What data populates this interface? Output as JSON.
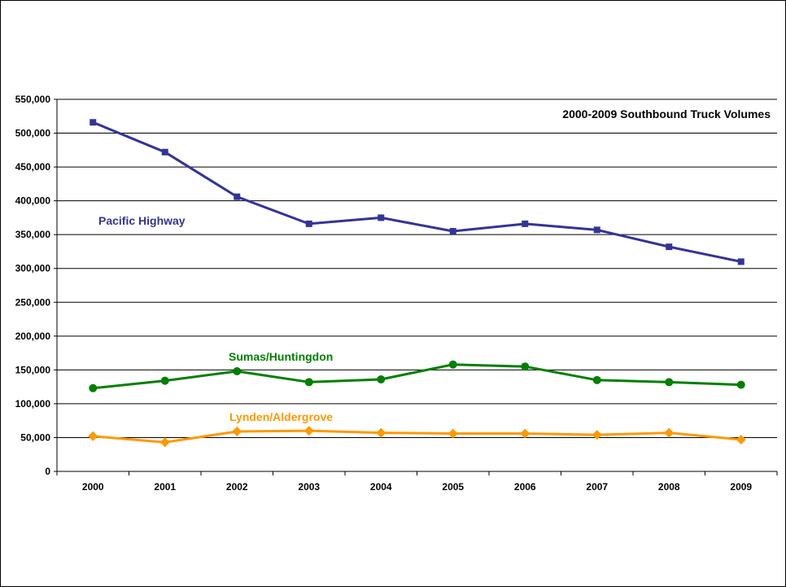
{
  "chart_data": {
    "type": "line",
    "title": "2000-2009 Southbound Truck Volumes",
    "xlabel": "",
    "ylabel": "",
    "categories": [
      "2000",
      "2001",
      "2002",
      "2003",
      "2004",
      "2005",
      "2006",
      "2007",
      "2008",
      "2009"
    ],
    "ylim": [
      0,
      550000
    ],
    "y_ticks": [
      0,
      50000,
      100000,
      150000,
      200000,
      250000,
      300000,
      350000,
      400000,
      450000,
      500000,
      550000
    ],
    "y_tick_labels": [
      "0",
      "50,000",
      "100,000",
      "150,000",
      "200,000",
      "250,000",
      "300,000",
      "350,000",
      "400,000",
      "450,000",
      "500,000",
      "550,000"
    ],
    "grid": "horizontal",
    "legend": "none",
    "series": [
      {
        "name": "Pacific Highway",
        "color": "#333399",
        "marker": "square",
        "values": [
          516000,
          472000,
          406000,
          366000,
          375000,
          355000,
          366000,
          357000,
          332000,
          310000
        ]
      },
      {
        "name": "Sumas/Huntingdon",
        "color": "#008000",
        "marker": "circle",
        "values": [
          123000,
          134000,
          148000,
          132000,
          136000,
          158000,
          155000,
          135000,
          132000,
          128000
        ]
      },
      {
        "name": "Lynden/Aldergrove",
        "color": "#FF9900",
        "marker": "diamond",
        "values": [
          52000,
          43000,
          59000,
          60000,
          57000,
          56000,
          56000,
          54000,
          57000,
          47000
        ]
      }
    ]
  }
}
